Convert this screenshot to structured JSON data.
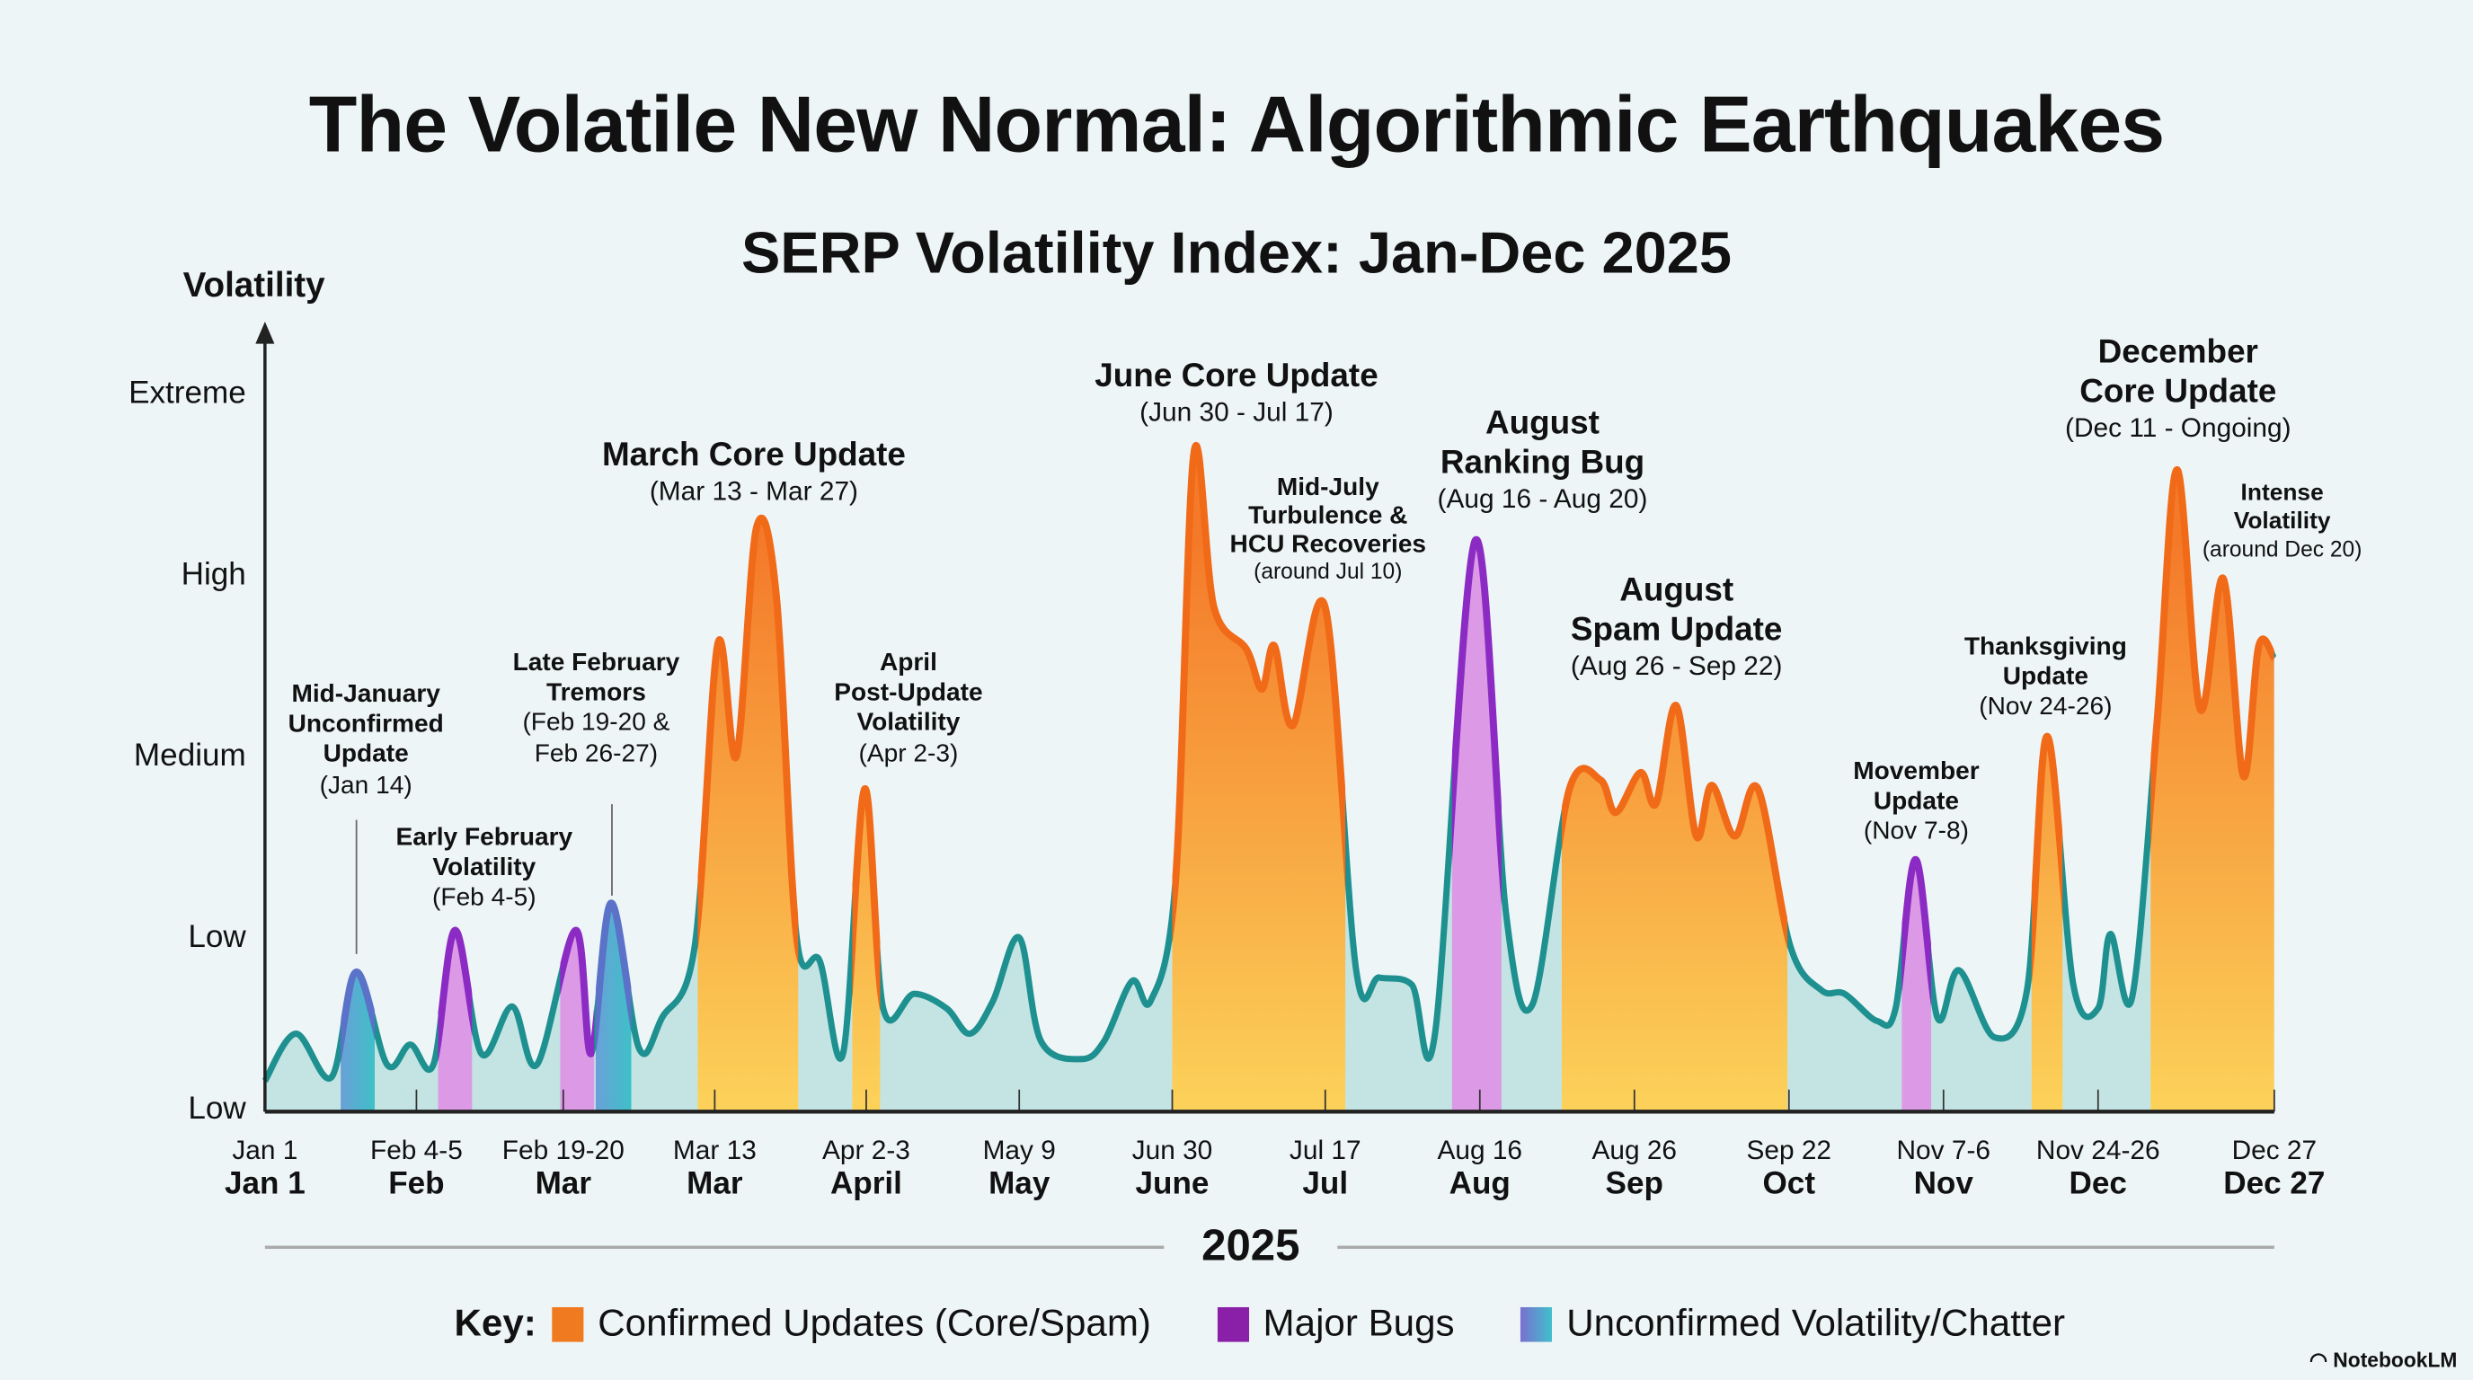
{
  "title": "The Volatile New Normal: Algorithmic Earthquakes",
  "subtitle": "SERP Volatility Index: Jan-Dec 2025",
  "watermark": "NotebookLM",
  "colors": {
    "confirmed_top": "#f47a2a",
    "confirmed_bottom": "#fcd25a",
    "confirmed_line": "#f06a18",
    "bug_fill": "#dc9ae6",
    "bug_line": "#8b2bc4",
    "unconfirmed_fill": "#4cb8cc",
    "unconfirmed_line": "#5a72c8",
    "base_fill": "#c4e4e3",
    "base_line": "#1e9090"
  },
  "chart_data": {
    "type": "area",
    "title": "SERP Volatility Index: Jan-Dec 2025",
    "ylabel": "Volatility",
    "xlabel": "2025",
    "y_levels": [
      "Low",
      "Low",
      "Medium",
      "High",
      "Extreme"
    ],
    "ylim": [
      0,
      4
    ],
    "xlim": [
      0,
      13
    ],
    "x_ticks": [
      {
        "pos": 0,
        "date": "Jan 1",
        "month": "Jan 1"
      },
      {
        "pos": 0.98,
        "date": "Feb 4-5",
        "month": "Feb"
      },
      {
        "pos": 1.93,
        "date": "Feb 19-20",
        "month": "Mar"
      },
      {
        "pos": 2.91,
        "date": "Mar 13",
        "month": "Mar"
      },
      {
        "pos": 3.89,
        "date": "Apr 2-3",
        "month": "April"
      },
      {
        "pos": 4.88,
        "date": "May 9",
        "month": "May"
      },
      {
        "pos": 5.87,
        "date": "Jun 30",
        "month": "June"
      },
      {
        "pos": 6.86,
        "date": "Jul 17",
        "month": "Jul"
      },
      {
        "pos": 7.86,
        "date": "Aug 16",
        "month": "Aug"
      },
      {
        "pos": 8.86,
        "date": "Aug 26",
        "month": "Sep"
      },
      {
        "pos": 9.86,
        "date": "Sep 22",
        "month": "Oct"
      },
      {
        "pos": 10.86,
        "date": "Nov 7-6",
        "month": "Nov"
      },
      {
        "pos": 11.86,
        "date": "Nov 24-26",
        "month": "Dec"
      },
      {
        "pos": 13,
        "date": "Dec 27",
        "month": "Dec 27"
      }
    ],
    "series": [
      {
        "name": "SERP Volatility",
        "points": [
          [
            0,
            0.17
          ],
          [
            0.2,
            0.43
          ],
          [
            0.43,
            0.19
          ],
          [
            0.59,
            0.77
          ],
          [
            0.79,
            0.26
          ],
          [
            0.94,
            0.37
          ],
          [
            1.09,
            0.26
          ],
          [
            1.23,
            1.0
          ],
          [
            1.4,
            0.32
          ],
          [
            1.6,
            0.58
          ],
          [
            1.76,
            0.26
          ],
          [
            2.01,
            1.0
          ],
          [
            2.11,
            0.32
          ],
          [
            2.24,
            1.15
          ],
          [
            2.42,
            0.35
          ],
          [
            2.57,
            0.52
          ],
          [
            2.78,
            0.91
          ],
          [
            2.93,
            2.58
          ],
          [
            3.05,
            1.96
          ],
          [
            3.18,
            3.22
          ],
          [
            3.31,
            2.83
          ],
          [
            3.44,
            0.96
          ],
          [
            3.59,
            0.83
          ],
          [
            3.74,
            0.32
          ],
          [
            3.88,
            1.78
          ],
          [
            4.0,
            0.57
          ],
          [
            4.2,
            0.65
          ],
          [
            4.41,
            0.57
          ],
          [
            4.56,
            0.43
          ],
          [
            4.71,
            0.61
          ],
          [
            4.88,
            0.96
          ],
          [
            5.02,
            0.39
          ],
          [
            5.28,
            0.29
          ],
          [
            5.43,
            0.39
          ],
          [
            5.61,
            0.72
          ],
          [
            5.73,
            0.61
          ],
          [
            5.89,
            1.26
          ],
          [
            6.01,
            3.63
          ],
          [
            6.14,
            2.78
          ],
          [
            6.35,
            2.55
          ],
          [
            6.45,
            2.33
          ],
          [
            6.53,
            2.57
          ],
          [
            6.65,
            2.13
          ],
          [
            6.86,
            2.78
          ],
          [
            7.06,
            0.78
          ],
          [
            7.21,
            0.74
          ],
          [
            7.42,
            0.7
          ],
          [
            7.57,
            0.43
          ],
          [
            7.83,
            3.15
          ],
          [
            8.03,
            1.09
          ],
          [
            8.2,
            0.59
          ],
          [
            8.44,
            1.78
          ],
          [
            8.64,
            1.83
          ],
          [
            8.74,
            1.65
          ],
          [
            8.9,
            1.87
          ],
          [
            9.0,
            1.7
          ],
          [
            9.13,
            2.24
          ],
          [
            9.26,
            1.52
          ],
          [
            9.36,
            1.8
          ],
          [
            9.51,
            1.52
          ],
          [
            9.66,
            1.78
          ],
          [
            9.87,
            0.91
          ],
          [
            10.07,
            0.67
          ],
          [
            10.22,
            0.65
          ],
          [
            10.43,
            0.5
          ],
          [
            10.55,
            0.57
          ],
          [
            10.68,
            1.39
          ],
          [
            10.82,
            0.52
          ],
          [
            10.96,
            0.78
          ],
          [
            11.19,
            0.41
          ],
          [
            11.4,
            0.67
          ],
          [
            11.53,
            2.07
          ],
          [
            11.7,
            0.7
          ],
          [
            11.86,
            0.57
          ],
          [
            11.94,
            0.98
          ],
          [
            12.08,
            0.63
          ],
          [
            12.24,
            2.13
          ],
          [
            12.37,
            3.54
          ],
          [
            12.52,
            2.22
          ],
          [
            12.67,
            2.94
          ],
          [
            12.8,
            1.85
          ],
          [
            12.9,
            2.57
          ],
          [
            13.0,
            2.5
          ]
        ]
      }
    ],
    "bands": [
      {
        "type": "unconfirmed",
        "from": 0.49,
        "to": 0.71
      },
      {
        "type": "bug",
        "from": 1.12,
        "to": 1.34
      },
      {
        "type": "bug",
        "from": 1.91,
        "to": 2.13
      },
      {
        "type": "unconfirmed",
        "from": 2.14,
        "to": 2.37
      },
      {
        "type": "confirmed",
        "from": 2.8,
        "to": 3.45
      },
      {
        "type": "confirmed",
        "from": 3.8,
        "to": 3.98
      },
      {
        "type": "confirmed",
        "from": 5.87,
        "to": 6.99
      },
      {
        "type": "bug",
        "from": 7.68,
        "to": 8.0
      },
      {
        "type": "confirmed",
        "from": 8.39,
        "to": 9.85
      },
      {
        "type": "bug",
        "from": 10.59,
        "to": 10.78
      },
      {
        "type": "confirmed",
        "from": 11.43,
        "to": 11.63
      },
      {
        "type": "confirmed",
        "from": 12.2,
        "to": 13.0
      }
    ],
    "legend": {
      "label": "Key:",
      "placement": "bottom",
      "items": [
        "Confirmed Updates (Core/Spam)",
        "Major Bugs",
        "Unconfirmed Volatility/Chatter"
      ]
    },
    "annotations": [
      {
        "title": [
          "Mid-January",
          "Unconfirmed",
          "Update"
        ],
        "sub": [
          "(Jan 14)"
        ]
      },
      {
        "title": [
          "Early February",
          "Volatility"
        ],
        "sub": [
          "(Feb 4-5)"
        ]
      },
      {
        "title": [
          "Late February",
          "Tremors"
        ],
        "sub": [
          "(Feb 19-20 &",
          "Feb 26-27)"
        ]
      },
      {
        "title": [
          "March Core Update"
        ],
        "sub": [
          "(Mar 13 - Mar 27)"
        ]
      },
      {
        "title": [
          "April",
          "Post-Update",
          "Volatility"
        ],
        "sub": [
          "(Apr 2-3)"
        ]
      },
      {
        "title": [
          "June Core Update"
        ],
        "sub": [
          "(Jun 30 - Jul 17)"
        ]
      },
      {
        "title": [
          "Mid-July",
          "Turbulence &",
          "HCU Recoveries"
        ],
        "sub": [
          "(around Jul 10)"
        ]
      },
      {
        "title": [
          "August",
          "Ranking Bug"
        ],
        "sub": [
          "(Aug 16 - Aug 20)"
        ]
      },
      {
        "title": [
          "August",
          "Spam Update"
        ],
        "sub": [
          "(Aug 26 - Sep 22)"
        ]
      },
      {
        "title": [
          "Movember",
          "Update"
        ],
        "sub": [
          "(Nov 7-8)"
        ]
      },
      {
        "title": [
          "Thanksgiving",
          "Update"
        ],
        "sub": [
          "(Nov 24-26)"
        ]
      },
      {
        "title": [
          "December",
          "Core Update"
        ],
        "sub": [
          "(Dec 11 - Ongoing)"
        ]
      },
      {
        "title": [
          "Intense",
          "Volatility"
        ],
        "sub": [
          "(around Dec 20)"
        ]
      }
    ]
  }
}
